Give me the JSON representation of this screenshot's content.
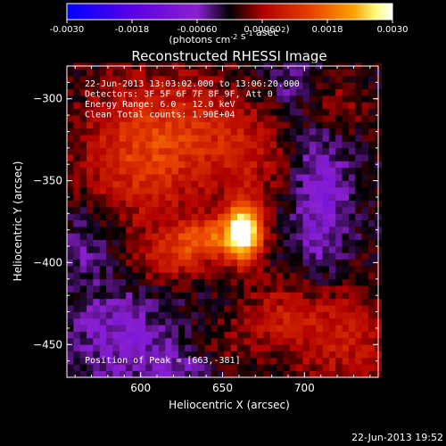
{
  "chart_data": {
    "type": "heatmap",
    "title": "Reconstructed RHESSI Image",
    "xlabel": "Heliocentric X (arcsec)",
    "ylabel": "Heliocentric Y (arcsec)",
    "xlim": [
      555,
      745
    ],
    "ylim": [
      -470,
      -280
    ],
    "x_ticks": [
      600,
      650,
      700
    ],
    "y_ticks": [
      -300,
      -350,
      -400,
      -450
    ],
    "colorbar": {
      "label_html": "(photons cm<sup>-2</sup> s<sup>-1</sup> asec<sup>-2</sup>)",
      "range": [
        -0.003,
        0.003
      ],
      "ticks": [
        "-0.0030",
        "-0.0018",
        "-0.00060",
        "0.00060",
        "0.0018",
        "0.0030"
      ]
    },
    "annotations": [
      "22-Jun-2013 13:03:02.000 to 13:06:20.000",
      "Detectors: 3F 5F 6F 7F 8F 9F, Att 0",
      "Energy Range: 6.0 - 12.0 keV",
      "Clean     Total counts: 1.90E+04"
    ],
    "peak_label": "Position of Peak = [663,-381]",
    "peak": {
      "x": 663,
      "y": -381,
      "value": 0.003
    },
    "components": [
      {
        "x": 663,
        "y": -381,
        "sx": 8,
        "sy": 13,
        "amp": 0.0032
      },
      {
        "x": 640,
        "y": -385,
        "sx": 14,
        "sy": 9,
        "amp": 0.0015
      },
      {
        "x": 618,
        "y": -398,
        "sx": 15,
        "sy": 10,
        "amp": 0.0009
      },
      {
        "x": 596,
        "y": -335,
        "sx": 26,
        "sy": 32,
        "amp": 0.0011
      },
      {
        "x": 632,
        "y": -320,
        "sx": 26,
        "sy": 26,
        "amp": 0.0008
      },
      {
        "x": 668,
        "y": -334,
        "sx": 18,
        "sy": 20,
        "amp": 0.0006
      },
      {
        "x": 718,
        "y": -305,
        "sx": 14,
        "sy": 14,
        "amp": 0.0006
      },
      {
        "x": 722,
        "y": -445,
        "sx": 24,
        "sy": 24,
        "amp": 0.0009
      },
      {
        "x": 685,
        "y": -432,
        "sx": 18,
        "sy": 14,
        "amp": 0.0007
      },
      {
        "x": 650,
        "y": -452,
        "sx": 14,
        "sy": 10,
        "amp": 0.0004
      },
      {
        "x": 710,
        "y": -360,
        "sx": 12,
        "sy": 38,
        "amp": -0.0008
      },
      {
        "x": 588,
        "y": -445,
        "sx": 20,
        "sy": 20,
        "amp": -0.0007
      },
      {
        "x": 568,
        "y": -385,
        "sx": 12,
        "sy": 18,
        "amp": -0.0005
      },
      {
        "x": 623,
        "y": -462,
        "sx": 14,
        "sy": 10,
        "amp": -0.0005
      },
      {
        "x": 690,
        "y": -292,
        "sx": 10,
        "sy": 10,
        "amp": -0.0004
      }
    ],
    "colormap": [
      "#0000ff",
      "#5a00e6",
      "#8a20d0",
      "#000000",
      "#b00000",
      "#e84000",
      "#ffa000",
      "#ffff80",
      "#ffffff"
    ]
  },
  "timestamp": "22-Jun-2013 19:52"
}
